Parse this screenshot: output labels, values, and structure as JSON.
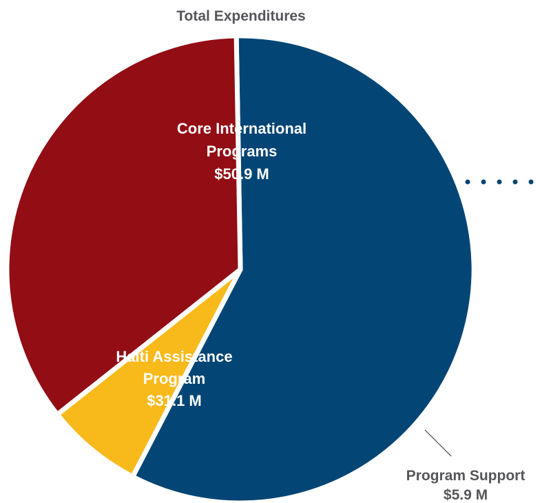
{
  "chart_data": {
    "type": "pie",
    "title": "Total Expenditures",
    "unit": "$ M",
    "slices": [
      {
        "lines": [
          "Core International",
          "Programs",
          "$50.9 M"
        ],
        "value": 50.9,
        "color": "#034575"
      },
      {
        "lines": [
          "Program Support",
          "$5.9 M"
        ],
        "value": 5.9,
        "color": "#f8b91a"
      },
      {
        "lines": [
          "Haiti Assistance",
          "Program",
          "$31.1 M"
        ],
        "value": 31.1,
        "color": "#920d14"
      }
    ],
    "dots_color": "#034575",
    "leader_color": "#55565a"
  }
}
